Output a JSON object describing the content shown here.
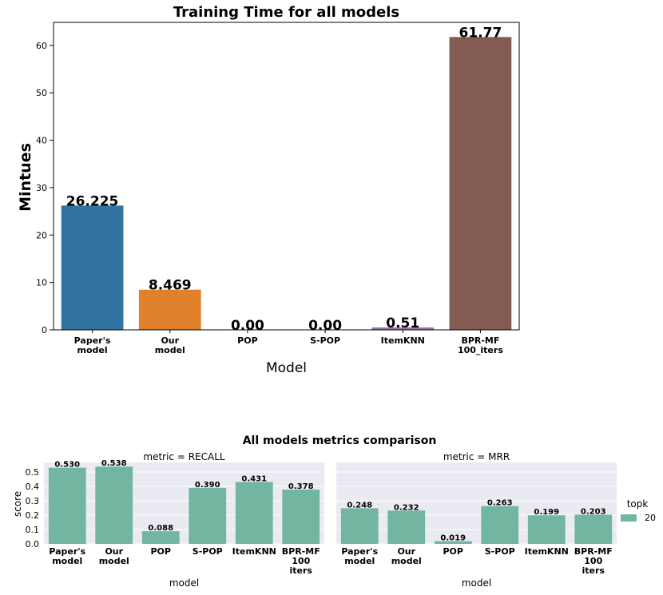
{
  "chart_data": [
    {
      "type": "bar",
      "title": "Training Time for all models",
      "ylabel": "Mintues",
      "xlabel": "Model",
      "categories": [
        "Paper's\nmodel",
        "Our\nmodel",
        "POP",
        "S-POP",
        "ItemKNN",
        "BPR-MF\n100_iters"
      ],
      "values": [
        26.225,
        8.469,
        0,
        0,
        0.51,
        61.77
      ],
      "value_labels": [
        "26.225",
        "8.469",
        "0.00",
        "0.00",
        "0.51",
        "61.77"
      ],
      "colors": [
        "#3274a1",
        "#e1812c",
        "#3a923a",
        "#c03d3e",
        "#9372b2",
        "#845b53"
      ],
      "ylim": [
        0,
        64.86
      ],
      "yticks": [
        0,
        10,
        20,
        30,
        40,
        50,
        60
      ],
      "grid": false
    },
    {
      "type": "facet-bar",
      "title": "All models metrics comparison",
      "ylabel": "score",
      "xlabel": "model",
      "legend_title": "topk",
      "series_name": "20",
      "color": "#72b6a1",
      "grid": true,
      "categories": [
        "Paper's\nmodel",
        "Our\nmodel",
        "POP",
        "S-POP",
        "ItemKNN",
        "BPR-MF\n100\niters"
      ],
      "ylim": [
        0,
        0.567
      ],
      "yticks": [
        {
          "value": 0,
          "label": "0.0"
        },
        {
          "value": 0.1,
          "label": "0.1"
        },
        {
          "value": 0.2,
          "label": "0.2"
        },
        {
          "value": 0.3,
          "label": "0.3"
        },
        {
          "value": 0.4,
          "label": "0.4"
        },
        {
          "value": 0.5,
          "label": "0.5"
        }
      ],
      "panels": [
        {
          "title": "metric = RECALL",
          "values": [
            0.53,
            0.538,
            0.088,
            0.39,
            0.431,
            0.378
          ],
          "value_labels": [
            "0.530",
            "0.538",
            "0.088",
            "0.390",
            "0.431",
            "0.378"
          ]
        },
        {
          "title": "metric = MRR",
          "values": [
            0.248,
            0.232,
            0.019,
            0.263,
            0.199,
            0.203
          ],
          "value_labels": [
            "0.248",
            "0.232",
            "0.019",
            "0.263",
            "0.199",
            "0.203"
          ]
        }
      ]
    }
  ]
}
